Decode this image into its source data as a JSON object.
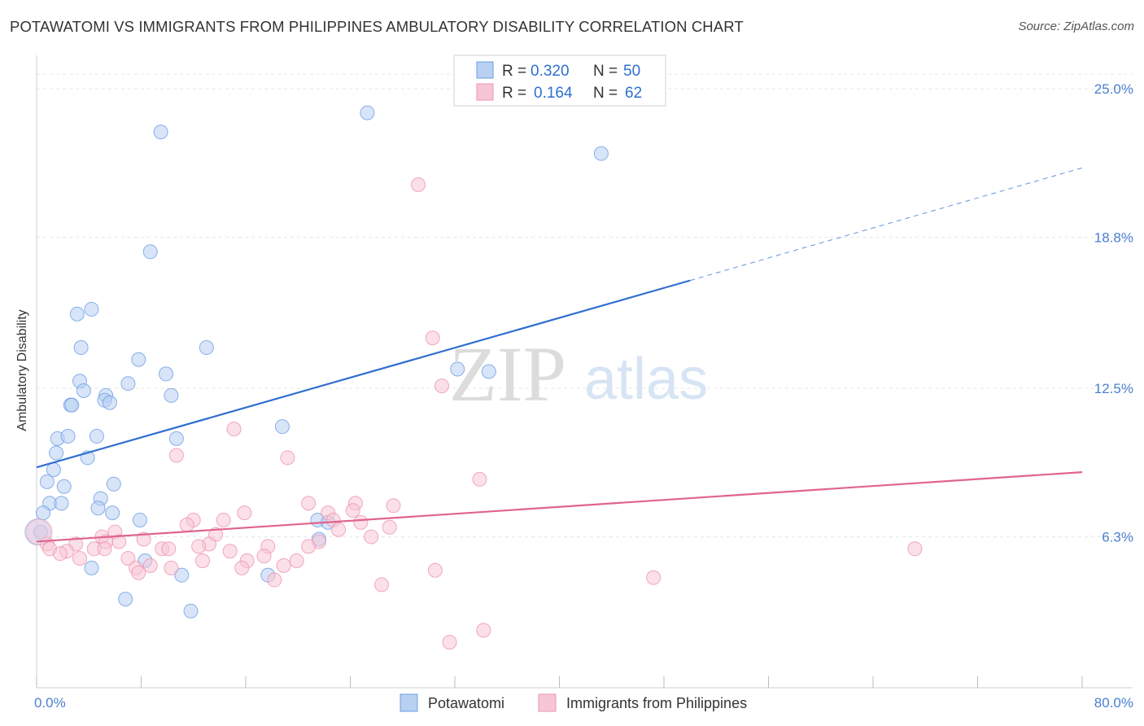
{
  "title": "POTAWATOMI VS IMMIGRANTS FROM PHILIPPINES AMBULATORY DISABILITY CORRELATION CHART",
  "source": "Source: ZipAtlas.com",
  "watermark": {
    "zip": "ZIP",
    "atlas": "atlas"
  },
  "chart_data": {
    "type": "scatter",
    "ylabel": "Ambulatory Disability",
    "x_axis": {
      "min_label": "0.0%",
      "max_label": "80.0%",
      "range": [
        0,
        80
      ]
    },
    "y_axis": {
      "range": [
        0,
        26.5
      ],
      "ticks": [
        {
          "value": 6.3,
          "label": "6.3%"
        },
        {
          "value": 12.5,
          "label": "12.5%"
        },
        {
          "value": 18.8,
          "label": "18.8%"
        },
        {
          "value": 25.0,
          "label": "25.0%"
        }
      ]
    },
    "legend": [
      {
        "r_label": "R =",
        "r_value": "0.320",
        "n_label": "N =",
        "n_value": "50"
      },
      {
        "r_label": "R =",
        "r_value": "0.164",
        "n_label": "N =",
        "n_value": "62"
      }
    ],
    "series": [
      {
        "name": "Potawatomi",
        "color": "#6d9ee3",
        "fill": "#b8d0f2",
        "line_color": "#2f6fd1",
        "trend": {
          "x0": 0,
          "y0": 9.2,
          "x1": 50,
          "y1": 17.0,
          "dash_to": 80,
          "dash_y": 21.7
        },
        "points": [
          [
            25.3,
            24.0
          ],
          [
            9.5,
            23.2
          ],
          [
            43.2,
            22.3
          ],
          [
            8.7,
            18.2
          ],
          [
            4.2,
            15.8
          ],
          [
            3.1,
            15.6
          ],
          [
            13.0,
            14.2
          ],
          [
            3.4,
            14.2
          ],
          [
            7.8,
            13.7
          ],
          [
            9.9,
            13.1
          ],
          [
            32.2,
            13.3
          ],
          [
            34.6,
            13.2
          ],
          [
            3.3,
            12.8
          ],
          [
            7.0,
            12.7
          ],
          [
            3.6,
            12.4
          ],
          [
            10.3,
            12.2
          ],
          [
            5.3,
            12.2
          ],
          [
            5.2,
            12.0
          ],
          [
            5.6,
            11.9
          ],
          [
            2.6,
            11.8
          ],
          [
            2.7,
            11.8
          ],
          [
            18.8,
            10.9
          ],
          [
            1.6,
            10.4
          ],
          [
            2.4,
            10.5
          ],
          [
            4.6,
            10.5
          ],
          [
            10.7,
            10.4
          ],
          [
            1.5,
            9.8
          ],
          [
            3.9,
            9.6
          ],
          [
            1.3,
            9.1
          ],
          [
            0.8,
            8.6
          ],
          [
            2.1,
            8.4
          ],
          [
            5.9,
            8.5
          ],
          [
            1.0,
            7.7
          ],
          [
            1.9,
            7.7
          ],
          [
            4.9,
            7.9
          ],
          [
            4.7,
            7.5
          ],
          [
            0.5,
            7.3
          ],
          [
            5.8,
            7.3
          ],
          [
            7.9,
            7.0
          ],
          [
            21.5,
            7.0
          ],
          [
            22.3,
            6.9
          ],
          [
            0.3,
            6.5
          ],
          [
            21.6,
            6.2
          ],
          [
            8.3,
            5.3
          ],
          [
            4.2,
            5.0
          ],
          [
            11.1,
            4.7
          ],
          [
            17.7,
            4.7
          ],
          [
            6.8,
            3.7
          ],
          [
            11.8,
            3.2
          ],
          [
            0.1,
            6.5
          ]
        ]
      },
      {
        "name": "Immigrants from Philippines",
        "color": "#ee94b1",
        "fill": "#f7c6d6",
        "line_color": "#e0638f",
        "trend": {
          "x0": 0,
          "y0": 6.1,
          "x1": 80,
          "y1": 9.0
        },
        "points": [
          [
            29.2,
            21.0
          ],
          [
            30.3,
            14.6
          ],
          [
            31.0,
            12.6
          ],
          [
            15.1,
            10.8
          ],
          [
            10.7,
            9.7
          ],
          [
            19.2,
            9.6
          ],
          [
            33.9,
            8.7
          ],
          [
            20.8,
            7.7
          ],
          [
            24.4,
            7.7
          ],
          [
            27.3,
            7.6
          ],
          [
            15.9,
            7.3
          ],
          [
            22.3,
            7.3
          ],
          [
            24.2,
            7.4
          ],
          [
            12.0,
            7.0
          ],
          [
            14.3,
            7.0
          ],
          [
            22.7,
            7.0
          ],
          [
            24.8,
            6.9
          ],
          [
            11.5,
            6.8
          ],
          [
            27.0,
            6.7
          ],
          [
            23.1,
            6.6
          ],
          [
            6.0,
            6.5
          ],
          [
            13.7,
            6.4
          ],
          [
            5.0,
            6.3
          ],
          [
            25.6,
            6.3
          ],
          [
            8.2,
            6.2
          ],
          [
            6.3,
            6.1
          ],
          [
            5.3,
            6.1
          ],
          [
            13.2,
            6.0
          ],
          [
            21.6,
            6.1
          ],
          [
            12.4,
            5.9
          ],
          [
            17.7,
            5.9
          ],
          [
            0.8,
            6.0
          ],
          [
            3.0,
            6.0
          ],
          [
            1.0,
            5.8
          ],
          [
            2.3,
            5.7
          ],
          [
            4.4,
            5.8
          ],
          [
            5.2,
            5.8
          ],
          [
            9.6,
            5.8
          ],
          [
            10.1,
            5.8
          ],
          [
            14.8,
            5.7
          ],
          [
            20.8,
            5.9
          ],
          [
            67.2,
            5.8
          ],
          [
            1.8,
            5.6
          ],
          [
            17.4,
            5.5
          ],
          [
            3.3,
            5.4
          ],
          [
            7.0,
            5.4
          ],
          [
            12.7,
            5.3
          ],
          [
            16.1,
            5.3
          ],
          [
            19.9,
            5.3
          ],
          [
            7.6,
            5.0
          ],
          [
            10.3,
            5.0
          ],
          [
            15.7,
            5.0
          ],
          [
            18.9,
            5.1
          ],
          [
            8.7,
            5.1
          ],
          [
            7.8,
            4.8
          ],
          [
            30.5,
            4.9
          ],
          [
            18.2,
            4.5
          ],
          [
            47.2,
            4.6
          ],
          [
            26.4,
            4.3
          ],
          [
            34.2,
            2.4
          ],
          [
            31.6,
            1.9
          ],
          [
            0.2,
            6.5
          ]
        ]
      }
    ]
  }
}
